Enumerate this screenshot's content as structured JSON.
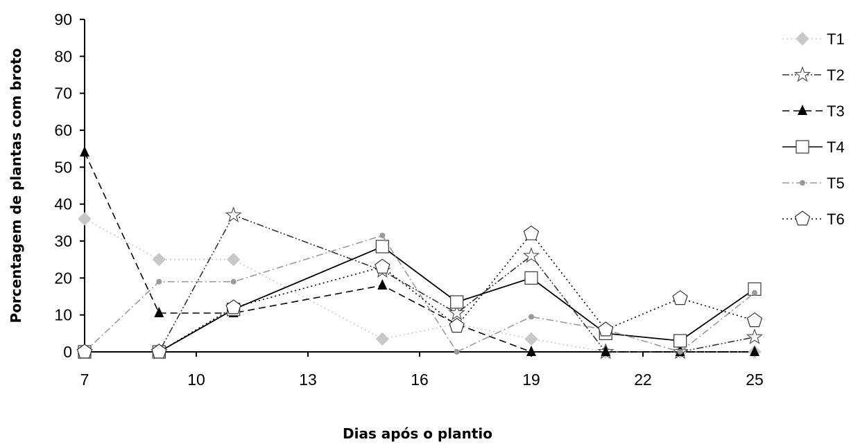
{
  "chart_data": {
    "type": "line",
    "xlabel": "Dias após o plantio",
    "ylabel": "Porcentagem de plantas com broto",
    "xlim": [
      7,
      25
    ],
    "ylim": [
      0,
      90
    ],
    "xticks": [
      "7",
      "10",
      "13",
      "16",
      "19",
      "22",
      "25"
    ],
    "yticks": [
      "0",
      "10",
      "20",
      "30",
      "40",
      "50",
      "60",
      "70",
      "80",
      "90"
    ],
    "grid": false,
    "legend_position": "right",
    "x": [
      7,
      9,
      11,
      15,
      17,
      19,
      21,
      23,
      25
    ],
    "series": [
      {
        "name": "T1",
        "color": "#c8c8c8",
        "marker": "diamond",
        "dash": "dotted",
        "values": [
          36,
          25,
          25,
          3.5,
          7.5,
          3.5,
          0,
          0,
          0
        ]
      },
      {
        "name": "T2",
        "color": "#333333",
        "marker": "star",
        "dash": "dash-dot-dot",
        "values": [
          0,
          0,
          37,
          22,
          10.5,
          26,
          0,
          0,
          4
        ]
      },
      {
        "name": "T3",
        "color": "#000000",
        "marker": "triangle",
        "dash": "dashed",
        "values": [
          54,
          10.5,
          10.5,
          18,
          7.5,
          0,
          0,
          0,
          0
        ]
      },
      {
        "name": "T4",
        "color": "#000000",
        "marker": "square",
        "dash": "solid",
        "values": [
          0,
          0,
          11.5,
          28.5,
          13.5,
          20,
          5,
          3,
          17
        ]
      },
      {
        "name": "T5",
        "color": "#999999",
        "marker": "circle",
        "dash": "dash-dot",
        "values": [
          0,
          19,
          19,
          31.5,
          0,
          9.5,
          6,
          0,
          16
        ]
      },
      {
        "name": "T6",
        "color": "#000000",
        "marker": "pentagon",
        "dash": "dotted",
        "values": [
          0,
          0,
          12,
          23,
          7,
          32,
          6,
          14.5,
          8.5
        ]
      }
    ]
  }
}
